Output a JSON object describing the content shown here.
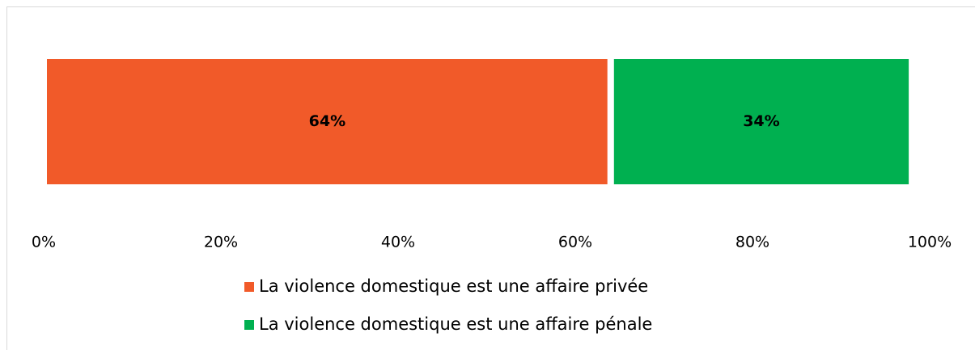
{
  "chart_data": {
    "type": "bar",
    "orientation": "horizontal",
    "stacked": true,
    "series": [
      {
        "name": "La violence domestique est une affaire privée",
        "color": "#f15a29",
        "values": [
          64
        ],
        "value_labels": [
          "64%"
        ]
      },
      {
        "name": "La violence domestique est une affaire pénale",
        "color": "#00b050",
        "values": [
          34
        ],
        "value_labels": [
          "34%"
        ]
      }
    ],
    "xlim": [
      0,
      100
    ],
    "xticks": [
      {
        "value": 0,
        "label": "0%"
      },
      {
        "value": 20,
        "label": "20%"
      },
      {
        "value": 40,
        "label": "40%"
      },
      {
        "value": 60,
        "label": "60%"
      },
      {
        "value": 80,
        "label": "80%"
      },
      {
        "value": 100,
        "label": "100%"
      }
    ],
    "legend": "bottom"
  }
}
